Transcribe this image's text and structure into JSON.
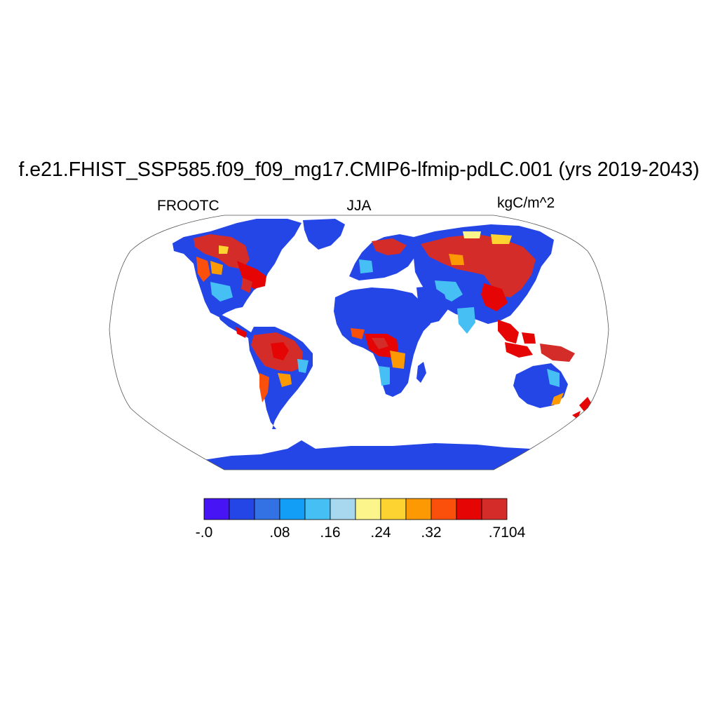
{
  "title": "f.e21.FHIST_SSP585.f09_f09_mg17.CMIP6-lfmip-pdLC.001 (yrs 2019-2043)",
  "variable": "FROOTC",
  "season": "JJA",
  "units": "kgC/m^2",
  "map": {
    "projection": "Robinson",
    "field_description": "fine root carbon, seasonal mean"
  },
  "colorbar": {
    "colors": [
      "#4714f5",
      "#2546e6",
      "#3372e4",
      "#129ef7",
      "#46c0f4",
      "#a8d8ef",
      "#fbf58c",
      "#fdd331",
      "#fd9902",
      "#fb4f0c",
      "#e50505",
      "#d42c29"
    ],
    "tick_labels": [
      {
        "text": "-.0",
        "boundary": 0
      },
      {
        "text": ".08",
        "boundary": 3
      },
      {
        "text": ".16",
        "boundary": 5
      },
      {
        "text": ".24",
        "boundary": 7
      },
      {
        "text": ".32",
        "boundary": 9
      },
      {
        "text": ".7104",
        "boundary": 12
      }
    ]
  }
}
